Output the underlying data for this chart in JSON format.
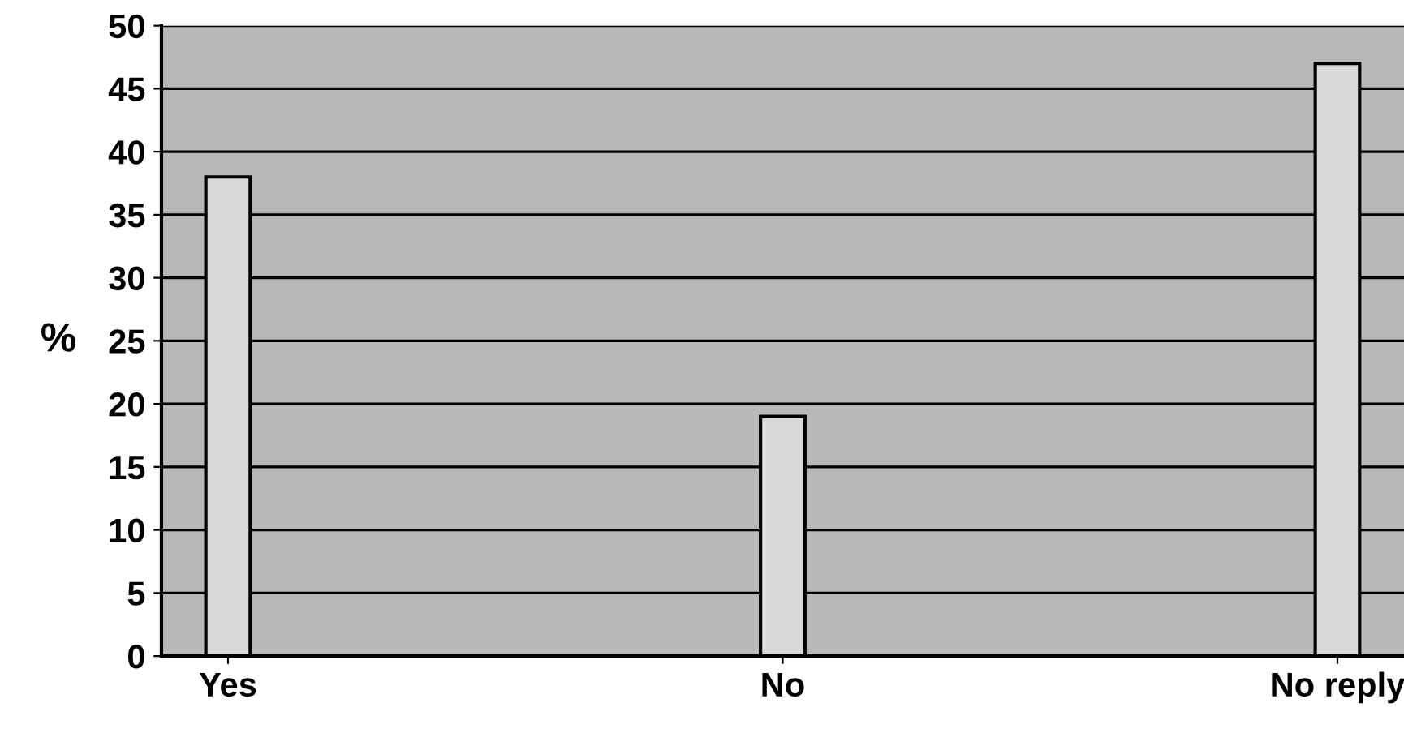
{
  "chart_data": {
    "type": "bar",
    "ylabel": "%",
    "categories": [
      "Yes",
      "No",
      "No reply"
    ],
    "series": [
      {
        "color": "#d9d9d9",
        "values": [
          38,
          19,
          47
        ]
      }
    ],
    "ylim": [
      0,
      50
    ],
    "yticks": [
      0,
      5,
      10,
      15,
      20,
      25,
      30,
      35,
      40,
      45,
      50
    ],
    "grid": "y"
  }
}
